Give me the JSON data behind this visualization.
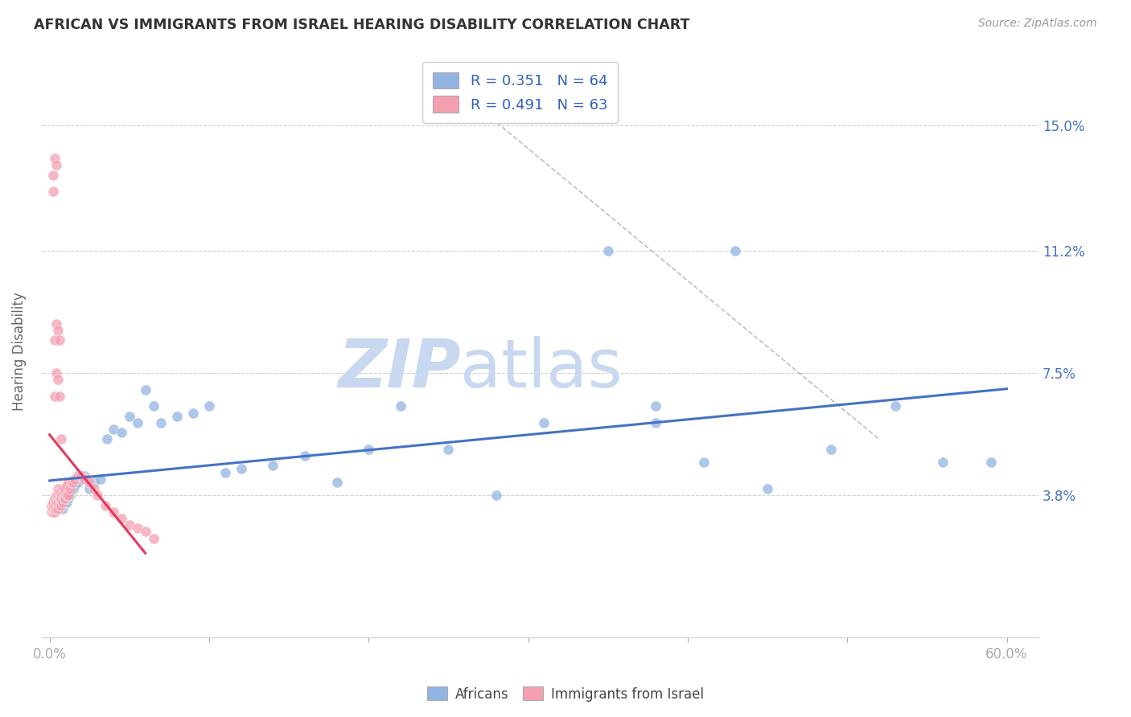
{
  "title": "AFRICAN VS IMMIGRANTS FROM ISRAEL HEARING DISABILITY CORRELATION CHART",
  "source": "Source: ZipAtlas.com",
  "ylabel": "Hearing Disability",
  "ytick_labels": [
    "3.8%",
    "7.5%",
    "11.2%",
    "15.0%"
  ],
  "ytick_values": [
    0.038,
    0.075,
    0.112,
    0.15
  ],
  "xlim": [
    -0.005,
    0.62
  ],
  "ylim": [
    -0.005,
    0.168
  ],
  "legend_blue_r": "R = 0.351",
  "legend_blue_n": "N = 64",
  "legend_pink_r": "R = 0.491",
  "legend_pink_n": "N = 63",
  "legend_label_blue": "Africans",
  "legend_label_pink": "Immigrants from Israel",
  "blue_color": "#92b4e3",
  "pink_color": "#f4a0b0",
  "blue_line_color": "#4472c4",
  "pink_line_color": "#e8365d",
  "watermark_zip": "ZIP",
  "watermark_atlas": "atlas",
  "watermark_color": "#c8d8f0",
  "blue_scatter_x": [
    0.002,
    0.003,
    0.003,
    0.004,
    0.004,
    0.005,
    0.005,
    0.006,
    0.006,
    0.007,
    0.007,
    0.008,
    0.008,
    0.009,
    0.009,
    0.01,
    0.01,
    0.011,
    0.011,
    0.012,
    0.012,
    0.013,
    0.013,
    0.014,
    0.015,
    0.016,
    0.017,
    0.018,
    0.02,
    0.022,
    0.025,
    0.028,
    0.032,
    0.036,
    0.04,
    0.045,
    0.05,
    0.055,
    0.06,
    0.065,
    0.07,
    0.08,
    0.09,
    0.1,
    0.11,
    0.12,
    0.14,
    0.16,
    0.18,
    0.2,
    0.22,
    0.25,
    0.28,
    0.31,
    0.35,
    0.38,
    0.41,
    0.45,
    0.49,
    0.53,
    0.56,
    0.59,
    0.38,
    0.43
  ],
  "blue_scatter_y": [
    0.033,
    0.034,
    0.035,
    0.034,
    0.036,
    0.035,
    0.037,
    0.035,
    0.036,
    0.035,
    0.036,
    0.034,
    0.037,
    0.036,
    0.037,
    0.036,
    0.038,
    0.036,
    0.038,
    0.037,
    0.038,
    0.038,
    0.039,
    0.04,
    0.04,
    0.041,
    0.042,
    0.042,
    0.043,
    0.044,
    0.04,
    0.042,
    0.043,
    0.055,
    0.058,
    0.057,
    0.062,
    0.06,
    0.07,
    0.065,
    0.06,
    0.062,
    0.063,
    0.065,
    0.045,
    0.046,
    0.047,
    0.05,
    0.042,
    0.052,
    0.065,
    0.052,
    0.038,
    0.06,
    0.112,
    0.06,
    0.048,
    0.04,
    0.052,
    0.065,
    0.048,
    0.048,
    0.065,
    0.112
  ],
  "pink_scatter_x": [
    0.001,
    0.001,
    0.002,
    0.002,
    0.002,
    0.003,
    0.003,
    0.003,
    0.003,
    0.004,
    0.004,
    0.004,
    0.005,
    0.005,
    0.005,
    0.005,
    0.006,
    0.006,
    0.006,
    0.007,
    0.007,
    0.007,
    0.008,
    0.008,
    0.008,
    0.009,
    0.009,
    0.01,
    0.01,
    0.011,
    0.011,
    0.012,
    0.012,
    0.013,
    0.014,
    0.015,
    0.016,
    0.018,
    0.02,
    0.022,
    0.025,
    0.028,
    0.03,
    0.035,
    0.04,
    0.045,
    0.05,
    0.055,
    0.06,
    0.065,
    0.003,
    0.004,
    0.005,
    0.006,
    0.007,
    0.003,
    0.004,
    0.005,
    0.006,
    0.002,
    0.003,
    0.004,
    0.002
  ],
  "pink_scatter_y": [
    0.033,
    0.035,
    0.033,
    0.034,
    0.036,
    0.033,
    0.034,
    0.035,
    0.037,
    0.034,
    0.036,
    0.038,
    0.034,
    0.036,
    0.038,
    0.04,
    0.035,
    0.037,
    0.039,
    0.035,
    0.037,
    0.039,
    0.036,
    0.038,
    0.04,
    0.037,
    0.039,
    0.037,
    0.04,
    0.038,
    0.041,
    0.038,
    0.042,
    0.04,
    0.042,
    0.042,
    0.043,
    0.044,
    0.044,
    0.043,
    0.042,
    0.04,
    0.038,
    0.035,
    0.033,
    0.031,
    0.029,
    0.028,
    0.027,
    0.025,
    0.068,
    0.075,
    0.073,
    0.068,
    0.055,
    0.085,
    0.09,
    0.088,
    0.085,
    0.135,
    0.14,
    0.138,
    0.13
  ]
}
